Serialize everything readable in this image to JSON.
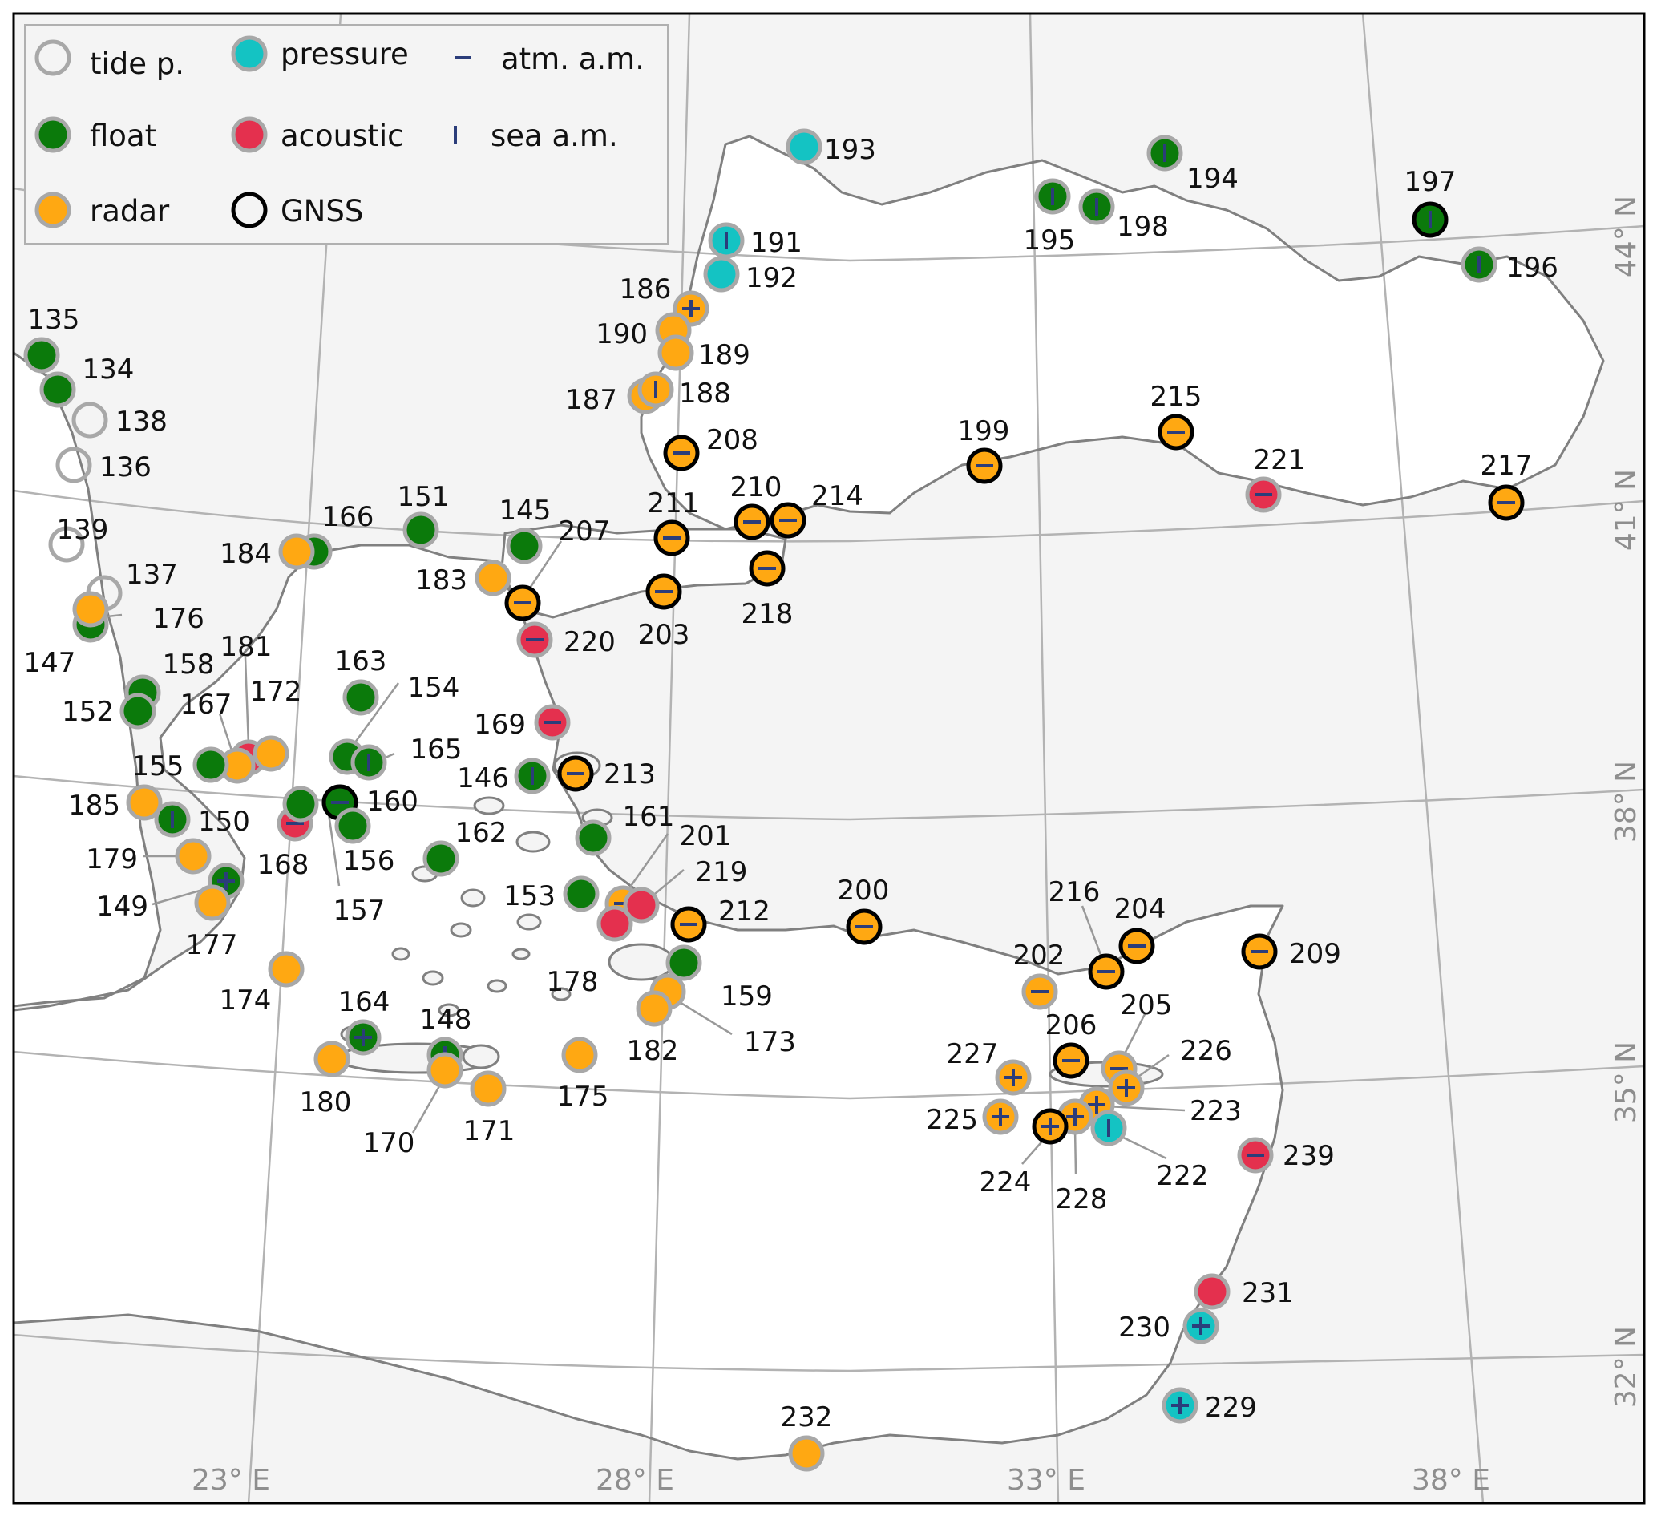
{
  "colors": {
    "land": "#f4f4f4",
    "sea": "#ffffff",
    "coast": "#808080",
    "grid": "#b3b3b3",
    "float": "#0b7a0b",
    "radar": "#ffa812",
    "pressure": "#14c3c3",
    "acoustic": "#e4304e",
    "ring": "#a8a8a8",
    "gnss": "#000000",
    "marker": "#2b3d7a"
  },
  "legend": {
    "items": [
      {
        "key": "tide",
        "label": "tide p."
      },
      {
        "key": "float",
        "label": "float"
      },
      {
        "key": "radar",
        "label": "radar"
      },
      {
        "key": "pressure",
        "label": "pressure"
      },
      {
        "key": "acoustic",
        "label": "acoustic"
      },
      {
        "key": "gnss",
        "label": "GNSS"
      },
      {
        "key": "atm",
        "label": "atm. a.m."
      },
      {
        "key": "sea",
        "label": "sea a.m."
      }
    ]
  },
  "grid_labels": {
    "lon": [
      "23° E",
      "28° E",
      "33° E",
      "38° E"
    ],
    "lat": [
      "44° N",
      "41° N",
      "38° N",
      "35° N",
      "32° N"
    ]
  },
  "stations": [
    {
      "id": "193",
      "type": "pressure",
      "gnss": false,
      "mark": ""
    },
    {
      "id": "191",
      "type": "pressure",
      "gnss": false,
      "mark": "sea"
    },
    {
      "id": "192",
      "type": "pressure",
      "gnss": false,
      "mark": ""
    },
    {
      "id": "186",
      "type": "radar",
      "gnss": false,
      "mark": "plus"
    },
    {
      "id": "190",
      "type": "radar",
      "gnss": false,
      "mark": ""
    },
    {
      "id": "189",
      "type": "radar",
      "gnss": false,
      "mark": ""
    },
    {
      "id": "187",
      "type": "radar",
      "gnss": false,
      "mark": ""
    },
    {
      "id": "188",
      "type": "radar",
      "gnss": false,
      "mark": "sea"
    },
    {
      "id": "208",
      "type": "radar",
      "gnss": true,
      "mark": "atm"
    },
    {
      "id": "194",
      "type": "float",
      "gnss": false,
      "mark": "sea"
    },
    {
      "id": "195",
      "type": "float",
      "gnss": false,
      "mark": "sea"
    },
    {
      "id": "198",
      "type": "float",
      "gnss": false,
      "mark": "sea"
    },
    {
      "id": "197",
      "type": "float",
      "gnss": true,
      "mark": "sea"
    },
    {
      "id": "196",
      "type": "float",
      "gnss": false,
      "mark": "sea"
    },
    {
      "id": "199",
      "type": "radar",
      "gnss": true,
      "mark": "atm"
    },
    {
      "id": "215",
      "type": "radar",
      "gnss": true,
      "mark": "atm"
    },
    {
      "id": "221",
      "type": "acoustic",
      "gnss": false,
      "mark": "atm"
    },
    {
      "id": "217",
      "type": "radar",
      "gnss": true,
      "mark": "atm"
    },
    {
      "id": "210",
      "type": "radar",
      "gnss": true,
      "mark": "atm"
    },
    {
      "id": "214",
      "type": "radar",
      "gnss": true,
      "mark": "atm"
    },
    {
      "id": "211",
      "type": "radar",
      "gnss": true,
      "mark": "atm"
    },
    {
      "id": "218",
      "type": "radar",
      "gnss": true,
      "mark": "atm"
    },
    {
      "id": "203",
      "type": "radar",
      "gnss": true,
      "mark": "atm"
    },
    {
      "id": "135",
      "type": "float",
      "gnss": false,
      "mark": ""
    },
    {
      "id": "134",
      "type": "float",
      "gnss": false,
      "mark": ""
    },
    {
      "id": "138",
      "type": "tide",
      "gnss": false,
      "mark": ""
    },
    {
      "id": "136",
      "type": "tide",
      "gnss": false,
      "mark": ""
    },
    {
      "id": "139",
      "type": "tide",
      "gnss": false,
      "mark": ""
    },
    {
      "id": "137",
      "type": "tide",
      "gnss": false,
      "mark": ""
    },
    {
      "id": "147",
      "type": "float",
      "gnss": false,
      "mark": ""
    },
    {
      "id": "176",
      "type": "radar",
      "gnss": false,
      "mark": ""
    },
    {
      "id": "166",
      "type": "float",
      "gnss": false,
      "mark": ""
    },
    {
      "id": "184",
      "type": "radar",
      "gnss": false,
      "mark": ""
    },
    {
      "id": "151",
      "type": "float",
      "gnss": false,
      "mark": ""
    },
    {
      "id": "145",
      "type": "float",
      "gnss": false,
      "mark": ""
    },
    {
      "id": "183",
      "type": "radar",
      "gnss": false,
      "mark": ""
    },
    {
      "id": "207",
      "type": "radar",
      "gnss": true,
      "mark": "atm"
    },
    {
      "id": "220",
      "type": "acoustic",
      "gnss": false,
      "mark": "atm"
    },
    {
      "id": "158",
      "type": "float",
      "gnss": false,
      "mark": ""
    },
    {
      "id": "152",
      "type": "float",
      "gnss": false,
      "mark": ""
    },
    {
      "id": "163",
      "type": "float",
      "gnss": false,
      "mark": ""
    },
    {
      "id": "169",
      "type": "acoustic",
      "gnss": false,
      "mark": "atm"
    },
    {
      "id": "181",
      "type": "acoustic",
      "gnss": false,
      "mark": "atm"
    },
    {
      "id": "167",
      "type": "radar",
      "gnss": false,
      "mark": ""
    },
    {
      "id": "172",
      "type": "radar",
      "gnss": false,
      "mark": ""
    },
    {
      "id": "155",
      "type": "float",
      "gnss": false,
      "mark": ""
    },
    {
      "id": "154",
      "type": "float",
      "gnss": false,
      "mark": ""
    },
    {
      "id": "165",
      "type": "float",
      "gnss": false,
      "mark": "sea"
    },
    {
      "id": "146",
      "type": "float",
      "gnss": false,
      "mark": "sea"
    },
    {
      "id": "213",
      "type": "radar",
      "gnss": true,
      "mark": "atm"
    },
    {
      "id": "185",
      "type": "radar",
      "gnss": false,
      "mark": ""
    },
    {
      "id": "150",
      "type": "float",
      "gnss": false,
      "mark": "sea"
    },
    {
      "id": "160",
      "type": "float",
      "gnss": true,
      "mark": "atm"
    },
    {
      "id": "168",
      "type": "acoustic",
      "gnss": false,
      "mark": "atm"
    },
    {
      "id": "156",
      "type": "float",
      "gnss": false,
      "mark": ""
    },
    {
      "id": "157",
      "type": "float",
      "gnss": false,
      "mark": ""
    },
    {
      "id": "162",
      "type": "float",
      "gnss": false,
      "mark": ""
    },
    {
      "id": "161",
      "type": "float",
      "gnss": false,
      "mark": ""
    },
    {
      "id": "179",
      "type": "radar",
      "gnss": false,
      "mark": ""
    },
    {
      "id": "149",
      "type": "float",
      "gnss": false,
      "mark": "plus"
    },
    {
      "id": "177",
      "type": "radar",
      "gnss": false,
      "mark": ""
    },
    {
      "id": "153",
      "type": "float",
      "gnss": false,
      "mark": ""
    },
    {
      "id": "201",
      "type": "radar",
      "gnss": false,
      "mark": "atm"
    },
    {
      "id": "219",
      "type": "acoustic",
      "gnss": false,
      "mark": ""
    },
    {
      "id": "178",
      "type": "acoustic",
      "gnss": false,
      "mark": ""
    },
    {
      "id": "212",
      "type": "radar",
      "gnss": true,
      "mark": "atm"
    },
    {
      "id": "159",
      "type": "float",
      "gnss": false,
      "mark": ""
    },
    {
      "id": "173",
      "type": "radar",
      "gnss": false,
      "mark": ""
    },
    {
      "id": "182",
      "type": "radar",
      "gnss": false,
      "mark": ""
    },
    {
      "id": "174",
      "type": "radar",
      "gnss": false,
      "mark": ""
    },
    {
      "id": "200",
      "type": "radar",
      "gnss": true,
      "mark": "atm"
    },
    {
      "id": "164",
      "type": "float",
      "gnss": false,
      "mark": "plus"
    },
    {
      "id": "148",
      "type": "float",
      "gnss": false,
      "mark": "sea"
    },
    {
      "id": "180",
      "type": "radar",
      "gnss": false,
      "mark": ""
    },
    {
      "id": "170",
      "type": "radar",
      "gnss": false,
      "mark": ""
    },
    {
      "id": "171",
      "type": "radar",
      "gnss": false,
      "mark": ""
    },
    {
      "id": "175",
      "type": "radar",
      "gnss": false,
      "mark": ""
    },
    {
      "id": "216",
      "type": "radar",
      "gnss": true,
      "mark": "atm"
    },
    {
      "id": "204",
      "type": "radar",
      "gnss": true,
      "mark": "atm"
    },
    {
      "id": "202",
      "type": "radar",
      "gnss": false,
      "mark": "atm"
    },
    {
      "id": "209",
      "type": "radar",
      "gnss": true,
      "mark": "atm"
    },
    {
      "id": "206",
      "type": "radar",
      "gnss": true,
      "mark": "atm"
    },
    {
      "id": "205",
      "type": "radar",
      "gnss": false,
      "mark": "atm"
    },
    {
      "id": "226",
      "type": "radar",
      "gnss": false,
      "mark": "plus"
    },
    {
      "id": "227",
      "type": "radar",
      "gnss": false,
      "mark": "plus"
    },
    {
      "id": "225",
      "type": "radar",
      "gnss": false,
      "mark": "plus"
    },
    {
      "id": "223",
      "type": "radar",
      "gnss": false,
      "mark": "plus"
    },
    {
      "id": "222",
      "type": "pressure",
      "gnss": false,
      "mark": "sea"
    },
    {
      "id": "228",
      "type": "radar",
      "gnss": false,
      "mark": "plus"
    },
    {
      "id": "224",
      "type": "radar",
      "gnss": true,
      "mark": "plus"
    },
    {
      "id": "239",
      "type": "acoustic",
      "gnss": false,
      "mark": "atm"
    },
    {
      "id": "231",
      "type": "acoustic",
      "gnss": false,
      "mark": ""
    },
    {
      "id": "230",
      "type": "pressure",
      "gnss": false,
      "mark": "plus"
    },
    {
      "id": "229",
      "type": "pressure",
      "gnss": false,
      "mark": "plus"
    },
    {
      "id": "232",
      "type": "radar",
      "gnss": false,
      "mark": ""
    }
  ]
}
